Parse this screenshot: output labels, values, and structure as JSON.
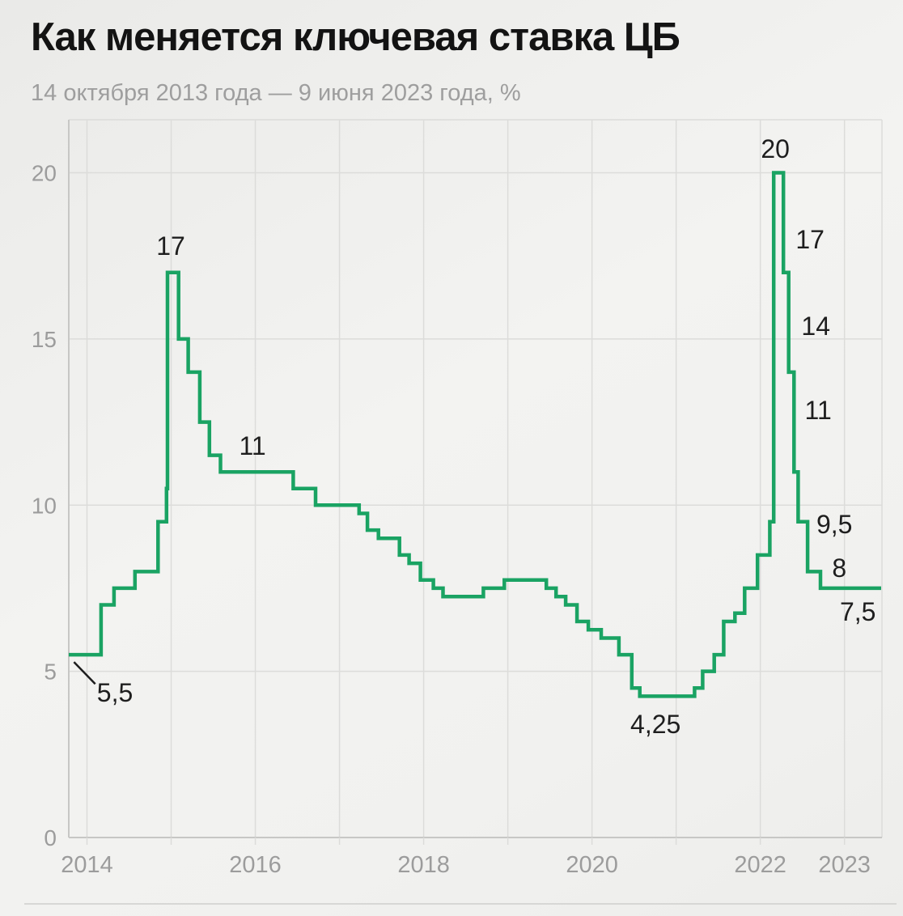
{
  "header": {
    "title": "Как меняется ключевая ставка ЦБ",
    "subtitle": "14 октября 2013 года — 9 июня 2023 года, %"
  },
  "chart_data": {
    "type": "line",
    "step": true,
    "title": "Как меняется ключевая ставка ЦБ",
    "subtitle": "14 октября 2013 года — 9 июня 2023 года, %",
    "ylabel": "%",
    "ylim": [
      0,
      21.6
    ],
    "grid": "on",
    "legend": "none",
    "series": [
      {
        "name": "Ключевая ставка ЦБ",
        "points": [
          [
            "2013-10-14",
            5.5
          ],
          [
            "2014-03-03",
            7.0
          ],
          [
            "2014-04-28",
            7.5
          ],
          [
            "2014-07-28",
            8.0
          ],
          [
            "2014-11-05",
            9.5
          ],
          [
            "2014-12-12",
            10.5
          ],
          [
            "2014-12-16",
            17.0
          ],
          [
            "2015-02-02",
            15.0
          ],
          [
            "2015-03-16",
            14.0
          ],
          [
            "2015-05-05",
            12.5
          ],
          [
            "2015-06-16",
            11.5
          ],
          [
            "2015-08-03",
            11.0
          ],
          [
            "2016-06-14",
            10.5
          ],
          [
            "2016-09-19",
            10.0
          ],
          [
            "2017-03-27",
            9.75
          ],
          [
            "2017-05-02",
            9.25
          ],
          [
            "2017-06-19",
            9.0
          ],
          [
            "2017-09-18",
            8.5
          ],
          [
            "2017-10-30",
            8.25
          ],
          [
            "2017-12-18",
            7.75
          ],
          [
            "2018-02-12",
            7.5
          ],
          [
            "2018-03-26",
            7.25
          ],
          [
            "2018-09-17",
            7.5
          ],
          [
            "2018-12-17",
            7.75
          ],
          [
            "2019-06-17",
            7.5
          ],
          [
            "2019-07-29",
            7.25
          ],
          [
            "2019-09-09",
            7.0
          ],
          [
            "2019-10-28",
            6.5
          ],
          [
            "2019-12-16",
            6.25
          ],
          [
            "2020-02-10",
            6.0
          ],
          [
            "2020-04-27",
            5.5
          ],
          [
            "2020-06-22",
            4.5
          ],
          [
            "2020-07-27",
            4.25
          ],
          [
            "2021-03-22",
            4.5
          ],
          [
            "2021-04-26",
            5.0
          ],
          [
            "2021-06-15",
            5.5
          ],
          [
            "2021-07-26",
            6.5
          ],
          [
            "2021-09-13",
            6.75
          ],
          [
            "2021-10-25",
            7.5
          ],
          [
            "2021-12-20",
            8.5
          ],
          [
            "2022-02-11",
            9.5
          ],
          [
            "2022-02-28",
            20.0
          ],
          [
            "2022-04-11",
            17.0
          ],
          [
            "2022-05-04",
            14.0
          ],
          [
            "2022-05-27",
            11.0
          ],
          [
            "2022-06-14",
            9.5
          ],
          [
            "2022-07-25",
            8.0
          ],
          [
            "2022-09-19",
            7.5
          ]
        ]
      }
    ],
    "end_date": "2023-06-09",
    "y_ticks": [
      0,
      5,
      10,
      15,
      20
    ],
    "x_grid_years": [
      2014,
      2015,
      2016,
      2017,
      2018,
      2019,
      2020,
      2021,
      2022,
      2023
    ],
    "x_tick_labels": [
      {
        "year": 2014,
        "label": "2014"
      },
      {
        "year": 2016,
        "label": "2016"
      },
      {
        "year": 2018,
        "label": "2018"
      },
      {
        "year": 2020,
        "label": "2020"
      },
      {
        "year": 2022,
        "label": "2022"
      },
      {
        "year": 2023,
        "label": "2023"
      }
    ],
    "annotations": [
      {
        "id": "start-5-5",
        "label": "5,5",
        "year": 2014.332,
        "value": 4.36
      },
      {
        "id": "peak-2014-17",
        "label": "17",
        "year": 2014.995,
        "value": 17.8
      },
      {
        "id": "plateau-11",
        "label": "11",
        "year": 2015.967,
        "value": 11.78
      },
      {
        "id": "trough-4-25",
        "label": "4,25",
        "year": 2020.755,
        "value": 3.41
      },
      {
        "id": "peak-2022-20",
        "label": "20",
        "year": 2022.178,
        "value": 20.72
      },
      {
        "id": "step-17",
        "label": "17",
        "year": 2022.591,
        "value": 17.99
      },
      {
        "id": "step-14",
        "label": "14",
        "year": 2022.659,
        "value": 15.39
      },
      {
        "id": "step-11",
        "label": "11",
        "year": 2022.687,
        "value": 12.86
      },
      {
        "id": "step-9-5",
        "label": "9,5",
        "year": 2022.88,
        "value": 9.42
      },
      {
        "id": "step-8",
        "label": "8",
        "year": 2022.938,
        "value": 8.11
      },
      {
        "id": "step-7-5",
        "label": "7,5",
        "year": 2023.159,
        "value": 6.79
      }
    ],
    "leader_line": {
      "x1_year": 2013.845,
      "v1": 5.28,
      "x2_year": 2014.098,
      "v2": 4.62
    },
    "colors": {
      "line": "#1aa363",
      "grid": "#dcdcda",
      "axis": "#c7c7c5",
      "tick_label": "#9c9c9c",
      "annotation": "#1e1e1e",
      "title": "#131313",
      "subtitle": "#9e9e9e",
      "divider": "#d7d7d5"
    }
  }
}
